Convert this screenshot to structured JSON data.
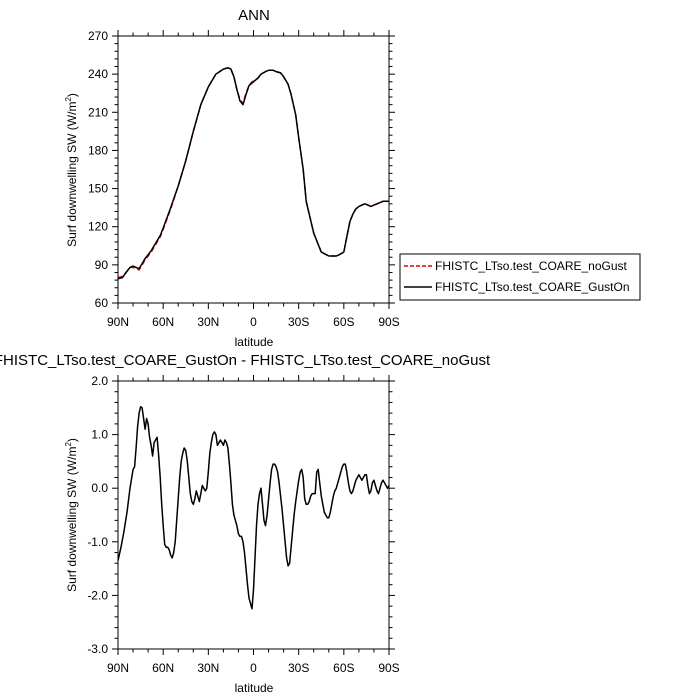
{
  "chart_data": [
    {
      "type": "line",
      "title": "ANN",
      "xlabel": "latitude",
      "ylabel": "Surf downwelling SW (W/m",
      "ylabel_sup": "2",
      "ylabel_close": ")",
      "xlim": [
        90,
        -90
      ],
      "ylim": [
        60,
        270
      ],
      "x_ticks": [
        90,
        60,
        30,
        0,
        -30,
        -60,
        -90
      ],
      "x_tick_labels": [
        "90N",
        "60N",
        "30N",
        "0",
        "30S",
        "60S",
        "90S"
      ],
      "y_ticks": [
        60,
        90,
        120,
        150,
        180,
        210,
        240,
        270
      ],
      "y_tick_labels": [
        "60",
        "90",
        "120",
        "150",
        "180",
        "210",
        "240",
        "270"
      ],
      "legend_position": "right",
      "series": [
        {
          "name": "FHISTC_LTso.test_COARE_noGust",
          "color": "#dd0000",
          "dash": "dashed",
          "x": [
            90,
            87,
            84,
            82,
            80,
            78,
            76,
            74,
            72,
            70,
            68,
            66,
            64,
            62,
            60,
            55,
            50,
            45,
            40,
            35,
            30,
            25,
            20,
            17,
            15,
            13,
            11,
            9,
            7,
            5,
            3,
            1,
            -1,
            -3,
            -5,
            -8,
            -10,
            -13,
            -15,
            -18,
            -20,
            -23,
            -25,
            -28,
            -30,
            -33,
            -35,
            -40,
            -45,
            -50,
            -55,
            -57,
            -60,
            -62,
            -64,
            -66,
            -68,
            -70,
            -72,
            -74,
            -76,
            -78,
            -80,
            -82,
            -84,
            -86,
            -88,
            -90
          ],
          "y": [
            80,
            81,
            85,
            88,
            88,
            87,
            86,
            90,
            94,
            97,
            100,
            104,
            108,
            112,
            118,
            134,
            152,
            172,
            195,
            216,
            230,
            240,
            244,
            245,
            244,
            238,
            228,
            220,
            217,
            225,
            231,
            234,
            235,
            237,
            240,
            242,
            243,
            243,
            242,
            241,
            238,
            232,
            224,
            208,
            190,
            165,
            140,
            115,
            100,
            97,
            97,
            98,
            100,
            112,
            124,
            130,
            134,
            136,
            137,
            138,
            137,
            136,
            137,
            138,
            139,
            140,
            140,
            140
          ]
        },
        {
          "name": "FHISTC_LTso.test_COARE_GustOn",
          "color": "#000000",
          "dash": "solid",
          "x": [
            90,
            87,
            84,
            82,
            80,
            78,
            76,
            74,
            72,
            70,
            68,
            66,
            64,
            62,
            60,
            55,
            50,
            45,
            40,
            35,
            30,
            25,
            20,
            17,
            15,
            13,
            11,
            9,
            7,
            5,
            3,
            1,
            -1,
            -3,
            -5,
            -8,
            -10,
            -13,
            -15,
            -18,
            -20,
            -23,
            -25,
            -28,
            -30,
            -33,
            -35,
            -40,
            -45,
            -50,
            -55,
            -57,
            -60,
            -62,
            -64,
            -66,
            -68,
            -70,
            -72,
            -74,
            -76,
            -78,
            -80,
            -82,
            -84,
            -86,
            -88,
            -90
          ],
          "y": [
            79,
            80,
            85,
            88,
            89,
            88,
            87,
            91,
            95,
            98,
            101,
            105,
            109,
            113,
            119,
            135,
            152,
            172,
            195,
            216,
            230,
            240,
            244,
            245,
            244,
            238,
            228,
            219,
            216,
            224,
            231,
            233,
            235,
            237,
            240,
            242,
            243,
            243,
            242,
            241,
            238,
            232,
            224,
            208,
            190,
            165,
            140,
            115,
            100,
            97,
            97,
            98,
            100,
            112,
            124,
            130,
            134,
            136,
            137,
            138,
            137,
            136,
            137,
            138,
            139,
            140,
            140,
            140
          ]
        }
      ]
    },
    {
      "type": "line",
      "title": "FHISTC_LTso.test_COARE_GustOn - FHISTC_LTso.test_COARE_noGust",
      "xlabel": "latitude",
      "ylabel": "Surf downwelling SW (W/m",
      "ylabel_sup": "2",
      "ylabel_close": ")",
      "xlim": [
        90,
        -90
      ],
      "ylim": [
        -3.0,
        2.0
      ],
      "x_ticks": [
        90,
        60,
        30,
        0,
        -30,
        -60,
        -90
      ],
      "x_tick_labels": [
        "90N",
        "60N",
        "30N",
        "0",
        "30S",
        "60S",
        "90S"
      ],
      "y_ticks": [
        -3.0,
        -2.0,
        -1.0,
        0.0,
        1.0,
        2.0
      ],
      "y_tick_labels": [
        "-3.0",
        "-2.0",
        "-1.0",
        "0.0",
        "1.0",
        "2.0"
      ],
      "series": [
        {
          "color": "#000000",
          "dash": "solid",
          "x": [
            90,
            88,
            86,
            84,
            82,
            80,
            79,
            78,
            77,
            76,
            75,
            74,
            73,
            72,
            71,
            70,
            69,
            68,
            67,
            66,
            65,
            64,
            63,
            62,
            61,
            60,
            59,
            58,
            57,
            56,
            55,
            54,
            53,
            52,
            51,
            50,
            49,
            48,
            47,
            46,
            45,
            44,
            43,
            42,
            41,
            40,
            39,
            38,
            37,
            36,
            35,
            34,
            33,
            32,
            31,
            30,
            29,
            28,
            27,
            26,
            25,
            24,
            23,
            22,
            21,
            20,
            19,
            18,
            17,
            16,
            15,
            14,
            13,
            12,
            11,
            10,
            9,
            8,
            7,
            6,
            5,
            4,
            3,
            2,
            1,
            0,
            -1,
            -2,
            -3,
            -4,
            -5,
            -6,
            -7,
            -8,
            -9,
            -10,
            -11,
            -12,
            -13,
            -14,
            -15,
            -16,
            -17,
            -18,
            -19,
            -20,
            -21,
            -22,
            -23,
            -24,
            -25,
            -26,
            -27,
            -28,
            -29,
            -30,
            -31,
            -32,
            -33,
            -34,
            -35,
            -36,
            -37,
            -38,
            -39,
            -40,
            -41,
            -42,
            -43,
            -44,
            -45,
            -46,
            -47,
            -48,
            -49,
            -50,
            -51,
            -52,
            -53,
            -54,
            -55,
            -56,
            -57,
            -58,
            -59,
            -60,
            -61,
            -62,
            -63,
            -64,
            -65,
            -66,
            -67,
            -68,
            -69,
            -70,
            -71,
            -72,
            -73,
            -74,
            -75,
            -76,
            -77,
            -78,
            -79,
            -80,
            -81,
            -82,
            -83,
            -84,
            -85,
            -86,
            -87,
            -88,
            -89,
            -90
          ],
          "y": [
            -1.35,
            -1.1,
            -0.8,
            -0.45,
            0.0,
            0.35,
            0.4,
            0.75,
            1.15,
            1.4,
            1.52,
            1.5,
            1.3,
            1.1,
            1.3,
            1.2,
            0.95,
            0.8,
            0.6,
            0.85,
            0.9,
            0.95,
            0.6,
            0.2,
            -0.3,
            -0.7,
            -1.05,
            -1.1,
            -1.1,
            -1.15,
            -1.25,
            -1.3,
            -1.2,
            -1.0,
            -0.6,
            -0.2,
            0.2,
            0.5,
            0.65,
            0.75,
            0.7,
            0.5,
            0.2,
            -0.1,
            -0.25,
            -0.3,
            -0.2,
            -0.05,
            -0.15,
            -0.25,
            -0.1,
            0.05,
            0.0,
            -0.05,
            0.0,
            0.3,
            0.65,
            0.85,
            1.0,
            1.05,
            1.0,
            0.8,
            0.85,
            0.9,
            0.85,
            0.8,
            0.9,
            0.85,
            0.75,
            0.45,
            0.1,
            -0.3,
            -0.5,
            -0.6,
            -0.7,
            -0.85,
            -0.9,
            -0.9,
            -1.0,
            -1.2,
            -1.5,
            -1.8,
            -2.05,
            -2.15,
            -2.25,
            -1.9,
            -1.3,
            -0.7,
            -0.3,
            -0.1,
            0.0,
            -0.3,
            -0.6,
            -0.7,
            -0.5,
            -0.2,
            0.1,
            0.35,
            0.45,
            0.45,
            0.4,
            0.3,
            0.1,
            -0.15,
            -0.4,
            -0.7,
            -1.0,
            -1.3,
            -1.45,
            -1.4,
            -1.1,
            -0.8,
            -0.5,
            -0.25,
            -0.05,
            0.15,
            0.3,
            0.35,
            0.2,
            -0.2,
            -0.3,
            -0.3,
            -0.25,
            -0.15,
            -0.1,
            -0.1,
            -0.1,
            0.3,
            0.35,
            0.1,
            -0.15,
            -0.3,
            -0.45,
            -0.5,
            -0.55,
            -0.55,
            -0.45,
            -0.3,
            -0.15,
            -0.05,
            0.0,
            0.1,
            0.2,
            0.3,
            0.4,
            0.45,
            0.45,
            0.3,
            0.1,
            -0.05,
            -0.1,
            -0.05,
            0.05,
            0.15,
            0.2,
            0.25,
            0.2,
            0.15,
            0.2,
            0.25,
            0.25,
            0.05,
            -0.1,
            -0.05,
            0.1,
            0.15,
            0.05,
            -0.05,
            -0.1,
            0.0,
            0.1,
            0.15,
            0.1,
            0.05,
            0.0,
            0.05
          ]
        }
      ]
    }
  ]
}
